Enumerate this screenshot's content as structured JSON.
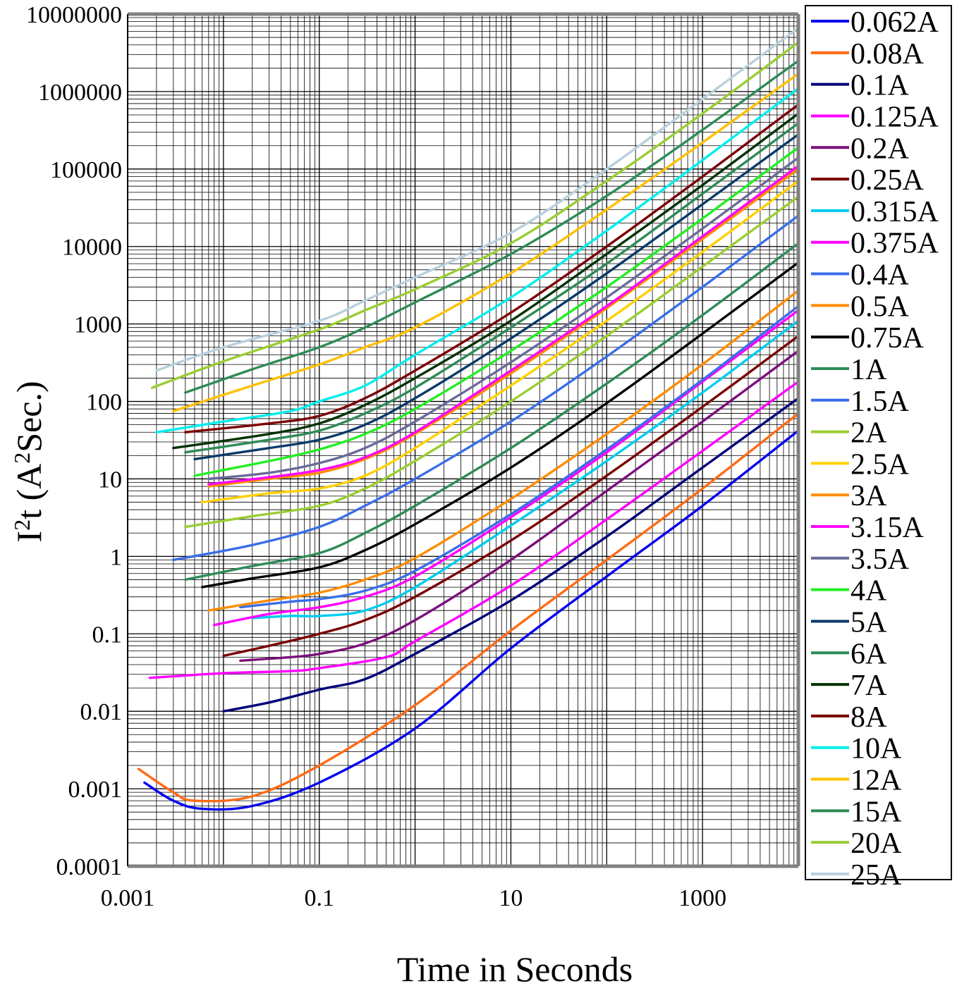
{
  "chart_data": {
    "type": "line",
    "title": "",
    "xlabel": "Time in Seconds",
    "ylabel": "I²t (A²Sec.)",
    "ylabel_parts": {
      "a": "I",
      "b": "2",
      "c": "t (A",
      "d": "2",
      "e": "Sec.)"
    },
    "x_scale": "log",
    "y_scale": "log",
    "xlim": [
      0.001,
      10000
    ],
    "ylim": [
      0.0001,
      10000000
    ],
    "x_ticks": [
      {
        "value": 0.001,
        "label": "0.001"
      },
      {
        "value": 0.1,
        "label": "0.1"
      },
      {
        "value": 10,
        "label": "10"
      },
      {
        "value": 1000,
        "label": "1000"
      }
    ],
    "y_ticks": [
      {
        "value": 10000000,
        "label": "10000000"
      },
      {
        "value": 1000000,
        "label": "1000000"
      },
      {
        "value": 100000,
        "label": "100000"
      },
      {
        "value": 10000,
        "label": "10000"
      },
      {
        "value": 1000,
        "label": "1000"
      },
      {
        "value": 100,
        "label": "100"
      },
      {
        "value": 10,
        "label": "10"
      },
      {
        "value": 1,
        "label": "1"
      },
      {
        "value": 0.1,
        "label": "0.1"
      },
      {
        "value": 0.01,
        "label": "0.01"
      },
      {
        "value": 0.001,
        "label": "0.001"
      },
      {
        "value": 0.0001,
        "label": "0.0001"
      }
    ],
    "grid": true,
    "legend_position": "right",
    "series": [
      {
        "name": "0.062A",
        "color": "#0000ee",
        "points": [
          [
            0.0015,
            0.0012
          ],
          [
            0.003,
            0.0007
          ],
          [
            0.006,
            0.00055
          ],
          [
            0.02,
            0.0006
          ],
          [
            0.1,
            0.0012
          ],
          [
            1,
            0.006
          ],
          [
            10,
            0.065
          ],
          [
            100,
            0.55
          ],
          [
            1000,
            4.5
          ],
          [
            10000,
            42
          ]
        ]
      },
      {
        "name": "0.08A",
        "color": "#ff6a13",
        "points": [
          [
            0.0013,
            0.0018
          ],
          [
            0.003,
            0.0009
          ],
          [
            0.005,
            0.0007
          ],
          [
            0.02,
            0.0008
          ],
          [
            0.1,
            0.002
          ],
          [
            1,
            0.012
          ],
          [
            10,
            0.11
          ],
          [
            100,
            0.9
          ],
          [
            1000,
            7.5
          ],
          [
            10000,
            70
          ]
        ]
      },
      {
        "name": "0.1A",
        "color": "#00007a",
        "points": [
          [
            0.01,
            0.01
          ],
          [
            0.03,
            0.013
          ],
          [
            0.1,
            0.019
          ],
          [
            0.3,
            0.026
          ],
          [
            1,
            0.055
          ],
          [
            10,
            0.27
          ],
          [
            100,
            1.8
          ],
          [
            1000,
            14
          ],
          [
            10000,
            110
          ]
        ]
      },
      {
        "name": "0.125A",
        "color": "#ff00ff",
        "points": [
          [
            0.0017,
            0.027
          ],
          [
            0.01,
            0.031
          ],
          [
            0.05,
            0.033
          ],
          [
            0.1,
            0.036
          ],
          [
            0.5,
            0.05
          ],
          [
            1,
            0.08
          ],
          [
            10,
            0.42
          ],
          [
            100,
            3
          ],
          [
            1000,
            23
          ],
          [
            10000,
            180
          ]
        ]
      },
      {
        "name": "0.2A",
        "color": "#7b0f7b",
        "points": [
          [
            0.015,
            0.045
          ],
          [
            0.05,
            0.05
          ],
          [
            0.1,
            0.055
          ],
          [
            0.3,
            0.075
          ],
          [
            1,
            0.15
          ],
          [
            10,
            0.9
          ],
          [
            100,
            7
          ],
          [
            1000,
            55
          ],
          [
            10000,
            450
          ]
        ]
      },
      {
        "name": "0.25A",
        "color": "#7a0000",
        "points": [
          [
            0.01,
            0.052
          ],
          [
            0.03,
            0.07
          ],
          [
            0.1,
            0.1
          ],
          [
            0.3,
            0.15
          ],
          [
            1,
            0.3
          ],
          [
            10,
            1.6
          ],
          [
            100,
            11
          ],
          [
            1000,
            85
          ],
          [
            10000,
            700
          ]
        ]
      },
      {
        "name": "0.315A",
        "color": "#00ccee",
        "points": [
          [
            0.02,
            0.16
          ],
          [
            0.05,
            0.17
          ],
          [
            0.1,
            0.17
          ],
          [
            0.3,
            0.2
          ],
          [
            1,
            0.4
          ],
          [
            10,
            2.5
          ],
          [
            100,
            17
          ],
          [
            1000,
            130
          ],
          [
            10000,
            1100
          ]
        ]
      },
      {
        "name": "0.375A",
        "color": "#ff00ff",
        "points": [
          [
            0.008,
            0.13
          ],
          [
            0.03,
            0.18
          ],
          [
            0.1,
            0.22
          ],
          [
            0.3,
            0.3
          ],
          [
            1,
            0.55
          ],
          [
            10,
            3.2
          ],
          [
            100,
            22
          ],
          [
            1000,
            180
          ],
          [
            10000,
            1500
          ]
        ]
      },
      {
        "name": "0.4A",
        "color": "#3a6ee8",
        "points": [
          [
            0.015,
            0.22
          ],
          [
            0.05,
            0.26
          ],
          [
            0.1,
            0.28
          ],
          [
            0.3,
            0.36
          ],
          [
            1,
            0.65
          ],
          [
            10,
            3.5
          ],
          [
            100,
            24
          ],
          [
            1000,
            190
          ],
          [
            10000,
            1700
          ]
        ]
      },
      {
        "name": "0.5A",
        "color": "#ff8c00",
        "points": [
          [
            0.007,
            0.2
          ],
          [
            0.03,
            0.27
          ],
          [
            0.1,
            0.34
          ],
          [
            0.3,
            0.5
          ],
          [
            1,
            0.95
          ],
          [
            10,
            5.5
          ],
          [
            100,
            38
          ],
          [
            1000,
            300
          ],
          [
            10000,
            2700
          ]
        ]
      },
      {
        "name": "0.75A",
        "color": "#000000",
        "points": [
          [
            0.006,
            0.4
          ],
          [
            0.02,
            0.52
          ],
          [
            0.1,
            0.72
          ],
          [
            0.3,
            1.2
          ],
          [
            1,
            2.6
          ],
          [
            10,
            14
          ],
          [
            100,
            95
          ],
          [
            1000,
            750
          ],
          [
            10000,
            6200
          ]
        ]
      },
      {
        "name": "1A",
        "color": "#2e8b57",
        "points": [
          [
            0.004,
            0.5
          ],
          [
            0.02,
            0.75
          ],
          [
            0.1,
            1.1
          ],
          [
            0.3,
            2
          ],
          [
            1,
            4.5
          ],
          [
            10,
            25
          ],
          [
            100,
            170
          ],
          [
            1000,
            1300
          ],
          [
            10000,
            11000
          ]
        ]
      },
      {
        "name": "1.5A",
        "color": "#3a6ee8",
        "points": [
          [
            0.003,
            0.9
          ],
          [
            0.02,
            1.4
          ],
          [
            0.1,
            2.4
          ],
          [
            0.3,
            4.5
          ],
          [
            1,
            10
          ],
          [
            10,
            55
          ],
          [
            100,
            380
          ],
          [
            1000,
            3000
          ],
          [
            10000,
            25000
          ]
        ]
      },
      {
        "name": "2A",
        "color": "#9acd32",
        "points": [
          [
            0.004,
            2.4
          ],
          [
            0.02,
            3.3
          ],
          [
            0.1,
            4.5
          ],
          [
            0.3,
            7.5
          ],
          [
            1,
            17
          ],
          [
            10,
            100
          ],
          [
            100,
            700
          ],
          [
            1000,
            5500
          ],
          [
            10000,
            44000
          ]
        ]
      },
      {
        "name": "2.5A",
        "color": "#ffd000",
        "points": [
          [
            0.006,
            5
          ],
          [
            0.03,
            6.5
          ],
          [
            0.1,
            7.5
          ],
          [
            0.3,
            11
          ],
          [
            1,
            25
          ],
          [
            10,
            160
          ],
          [
            100,
            1100
          ],
          [
            1000,
            8500
          ],
          [
            10000,
            70000
          ]
        ]
      },
      {
        "name": "3A",
        "color": "#ff8c00",
        "points": [
          [
            0.007,
            8
          ],
          [
            0.03,
            10
          ],
          [
            0.1,
            12
          ],
          [
            0.3,
            18
          ],
          [
            1,
            38
          ],
          [
            10,
            230
          ],
          [
            100,
            1600
          ],
          [
            1000,
            12500
          ],
          [
            10000,
            100000
          ]
        ]
      },
      {
        "name": "3.15A",
        "color": "#ff00ff",
        "points": [
          [
            0.007,
            8.5
          ],
          [
            0.03,
            10.5
          ],
          [
            0.1,
            13
          ],
          [
            0.3,
            19
          ],
          [
            1,
            40
          ],
          [
            10,
            250
          ],
          [
            100,
            1700
          ],
          [
            1000,
            13500
          ],
          [
            10000,
            110000
          ]
        ]
      },
      {
        "name": "3.5A",
        "color": "#6a6a9a",
        "points": [
          [
            0.007,
            10
          ],
          [
            0.03,
            12
          ],
          [
            0.1,
            16
          ],
          [
            0.3,
            25
          ],
          [
            1,
            55
          ],
          [
            10,
            320
          ],
          [
            100,
            2200
          ],
          [
            1000,
            17000
          ],
          [
            10000,
            140000
          ]
        ]
      },
      {
        "name": "4A",
        "color": "#22ee22",
        "points": [
          [
            0.005,
            11
          ],
          [
            0.03,
            17
          ],
          [
            0.1,
            24
          ],
          [
            0.3,
            38
          ],
          [
            1,
            80
          ],
          [
            10,
            450
          ],
          [
            100,
            3000
          ],
          [
            1000,
            23000
          ],
          [
            10000,
            190000
          ]
        ]
      },
      {
        "name": "5A",
        "color": "#0a3a6a",
        "points": [
          [
            0.005,
            18
          ],
          [
            0.03,
            25
          ],
          [
            0.1,
            32
          ],
          [
            0.3,
            50
          ],
          [
            1,
            110
          ],
          [
            10,
            650
          ],
          [
            100,
            4500
          ],
          [
            1000,
            35000
          ],
          [
            10000,
            280000
          ]
        ]
      },
      {
        "name": "6A",
        "color": "#2e8b57",
        "points": [
          [
            0.004,
            22
          ],
          [
            0.03,
            32
          ],
          [
            0.1,
            42
          ],
          [
            0.3,
            70
          ],
          [
            1,
            150
          ],
          [
            10,
            900
          ],
          [
            100,
            6000
          ],
          [
            1000,
            48000
          ],
          [
            10000,
            390000
          ]
        ]
      },
      {
        "name": "7A",
        "color": "#003300",
        "points": [
          [
            0.003,
            25
          ],
          [
            0.03,
            38
          ],
          [
            0.1,
            52
          ],
          [
            0.3,
            90
          ],
          [
            1,
            200
          ],
          [
            10,
            1100
          ],
          [
            100,
            8000
          ],
          [
            1000,
            62000
          ],
          [
            10000,
            520000
          ]
        ]
      },
      {
        "name": "8A",
        "color": "#7a0000",
        "points": [
          [
            0.004,
            40
          ],
          [
            0.03,
            52
          ],
          [
            0.1,
            65
          ],
          [
            0.3,
            110
          ],
          [
            1,
            250
          ],
          [
            10,
            1400
          ],
          [
            100,
            10000
          ],
          [
            1000,
            80000
          ],
          [
            10000,
            680000
          ]
        ]
      },
      {
        "name": "10A",
        "color": "#00eeee",
        "points": [
          [
            0.002,
            40
          ],
          [
            0.01,
            55
          ],
          [
            0.05,
            75
          ],
          [
            0.1,
            100
          ],
          [
            0.3,
            160
          ],
          [
            1,
            400
          ],
          [
            10,
            2200
          ],
          [
            100,
            16000
          ],
          [
            1000,
            130000
          ],
          [
            10000,
            1100000
          ]
        ]
      },
      {
        "name": "12A",
        "color": "#ffc000",
        "points": [
          [
            0.003,
            75
          ],
          [
            0.02,
            160
          ],
          [
            0.1,
            300
          ],
          [
            0.3,
            500
          ],
          [
            1,
            900
          ],
          [
            10,
            4500
          ],
          [
            100,
            30000
          ],
          [
            1000,
            220000
          ],
          [
            10000,
            1700000
          ]
        ]
      },
      {
        "name": "15A",
        "color": "#2e8b57",
        "points": [
          [
            0.004,
            130
          ],
          [
            0.02,
            260
          ],
          [
            0.1,
            500
          ],
          [
            0.3,
            900
          ],
          [
            1,
            1900
          ],
          [
            10,
            8000
          ],
          [
            100,
            45000
          ],
          [
            1000,
            320000
          ],
          [
            10000,
            2500000
          ]
        ]
      },
      {
        "name": "20A",
        "color": "#9acd32",
        "points": [
          [
            0.0018,
            150
          ],
          [
            0.01,
            330
          ],
          [
            0.1,
            850
          ],
          [
            0.3,
            1500
          ],
          [
            1,
            2800
          ],
          [
            10,
            11000
          ],
          [
            100,
            70000
          ],
          [
            1000,
            520000
          ],
          [
            10000,
            4300000
          ]
        ]
      },
      {
        "name": "25A",
        "color": "#b8d0dc",
        "points": [
          [
            0.002,
            250
          ],
          [
            0.01,
            500
          ],
          [
            0.1,
            1100
          ],
          [
            0.3,
            2000
          ],
          [
            1,
            4000
          ],
          [
            10,
            15000
          ],
          [
            100,
            100000
          ],
          [
            1000,
            800000
          ],
          [
            10000,
            6600000
          ]
        ]
      }
    ]
  }
}
